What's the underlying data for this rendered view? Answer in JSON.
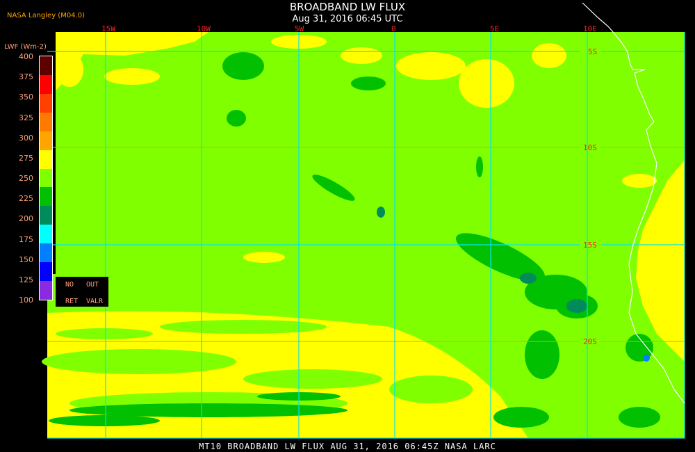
{
  "header": {
    "title": "BROADBAND LW FLUX",
    "subtitle": "Aug 31, 2016 06:45 UTC",
    "org": "NASA Langley (M04.0)"
  },
  "legend": {
    "units": "LWF (Wm-2)",
    "ticks": [
      "400",
      "375",
      "350",
      "325",
      "300",
      "275",
      "250",
      "225",
      "200",
      "175",
      "150",
      "125",
      "100"
    ],
    "colors": [
      "#5c0000",
      "#ff0000",
      "#ff4000",
      "#ff7a00",
      "#ffa500",
      "#ffff00",
      "#80ff00",
      "#00c000",
      "#008c5a",
      "#00ffff",
      "#0080ff",
      "#0000ff",
      "#8a2be2"
    ],
    "nodata": {
      "no": "NO",
      "out": "OUT",
      "ret": "RET",
      "valr": "VALR"
    }
  },
  "map": {
    "lon_labels": [
      "15W",
      "10W",
      "5W",
      "0",
      "5E",
      "10E"
    ],
    "lat_labels": [
      "5S",
      "10S",
      "15S",
      "20S"
    ],
    "colors": {
      "grid": "#00e5ee",
      "coast": "#ffffff",
      "low": "#80ff00",
      "high": "#ffff00",
      "mid": "#00c000",
      "cold": "#008c5a"
    }
  },
  "footer": {
    "text": "MT10  BROADBAND LW FLUX   AUG 31, 2016 06:45Z   NASA LARC"
  }
}
